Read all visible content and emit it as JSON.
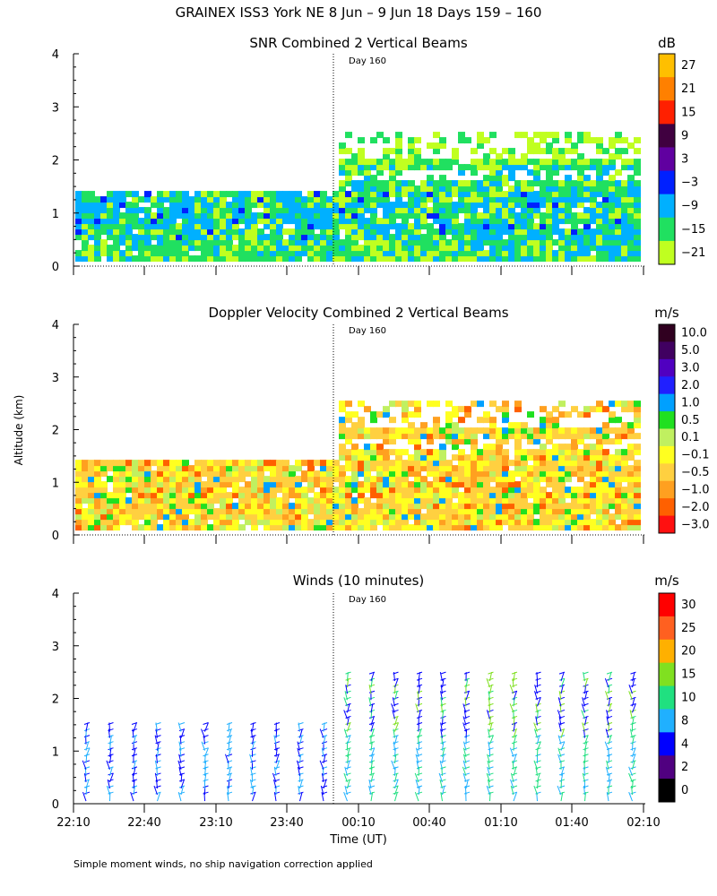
{
  "title": "GRAINEX ISS3 York NE   8 Jun –  9 Jun 18 Days 159 – 160",
  "footnote": "Simple moment winds, no ship navigation correction applied",
  "chart_data": [
    {
      "type": "heatmap",
      "title": "SNR Combined 2 Vertical Beams",
      "colorbar_title": "dB",
      "colorbar_labels": [
        "27",
        "21",
        "15",
        "9",
        "3",
        "−3",
        "−9",
        "−15",
        "−21"
      ],
      "colorbar_colors": [
        "#ffbf00",
        "#ff8000",
        "#ff2000",
        "#400040",
        "#6000a0",
        "#0020ff",
        "#00b0ff",
        "#20e060",
        "#c0ff20"
      ],
      "yticks": [
        "4",
        "3",
        "2",
        "1",
        "0"
      ],
      "ylim": [
        0,
        4
      ],
      "day_marker": "Day 160",
      "x": [
        "22:10",
        "22:40",
        "23:10",
        "23:40",
        "00:10",
        "00:40",
        "01:10",
        "01:40",
        "02:10"
      ],
      "data_extent_km": {
        "before_day160": 1.4,
        "after_day160": 2.5
      }
    },
    {
      "type": "heatmap",
      "title": "Doppler Velocity Combined 2 Vertical Beams",
      "colorbar_title": "m/s",
      "colorbar_labels": [
        "10.0",
        "5.0",
        "3.0",
        "2.0",
        "1.0",
        "0.5",
        "0.1",
        "−0.1",
        "−0.5",
        "−1.0",
        "−2.0",
        "−3.0"
      ],
      "colorbar_colors": [
        "#300020",
        "#400060",
        "#5000c0",
        "#2020ff",
        "#00a0ff",
        "#20e020",
        "#c0f060",
        "#ffff20",
        "#ffd040",
        "#ffa020",
        "#ff6000",
        "#ff1010"
      ],
      "yticks": [
        "4",
        "3",
        "2",
        "1",
        "0"
      ],
      "ylim": [
        0,
        4
      ],
      "ylabel": "Altitude (km)",
      "day_marker": "Day 160",
      "data_extent_km": {
        "before_day160": 1.4,
        "after_day160": 2.5
      }
    },
    {
      "type": "scatter",
      "title": "Winds (10 minutes)",
      "colorbar_title": "m/s",
      "colorbar_labels": [
        "30",
        "25",
        "20",
        "15",
        "10",
        "8",
        "4",
        "2",
        "0"
      ],
      "colorbar_colors": [
        "#ff0000",
        "#ff6020",
        "#ffb000",
        "#80e020",
        "#20e080",
        "#20b0ff",
        "#0000ff",
        "#500080",
        "#000000"
      ],
      "yticks": [
        "4",
        "3",
        "2",
        "1",
        "0"
      ],
      "ylim": [
        0,
        4
      ],
      "xlabel": "Time (UT)",
      "xticks": [
        "22:10",
        "22:40",
        "23:10",
        "23:40",
        "00:10",
        "00:40",
        "01:10",
        "01:40",
        "02:10"
      ],
      "day_marker": "Day 160",
      "profile_times": [
        "22:20",
        "22:30",
        "22:40",
        "22:50",
        "23:00",
        "23:10",
        "23:20",
        "23:30",
        "23:40",
        "23:50",
        "00:00",
        "00:10",
        "00:20",
        "00:30",
        "00:40",
        "00:50",
        "01:00",
        "01:10",
        "01:20",
        "01:30",
        "01:40",
        "01:50",
        "02:00",
        "02:10"
      ]
    }
  ]
}
